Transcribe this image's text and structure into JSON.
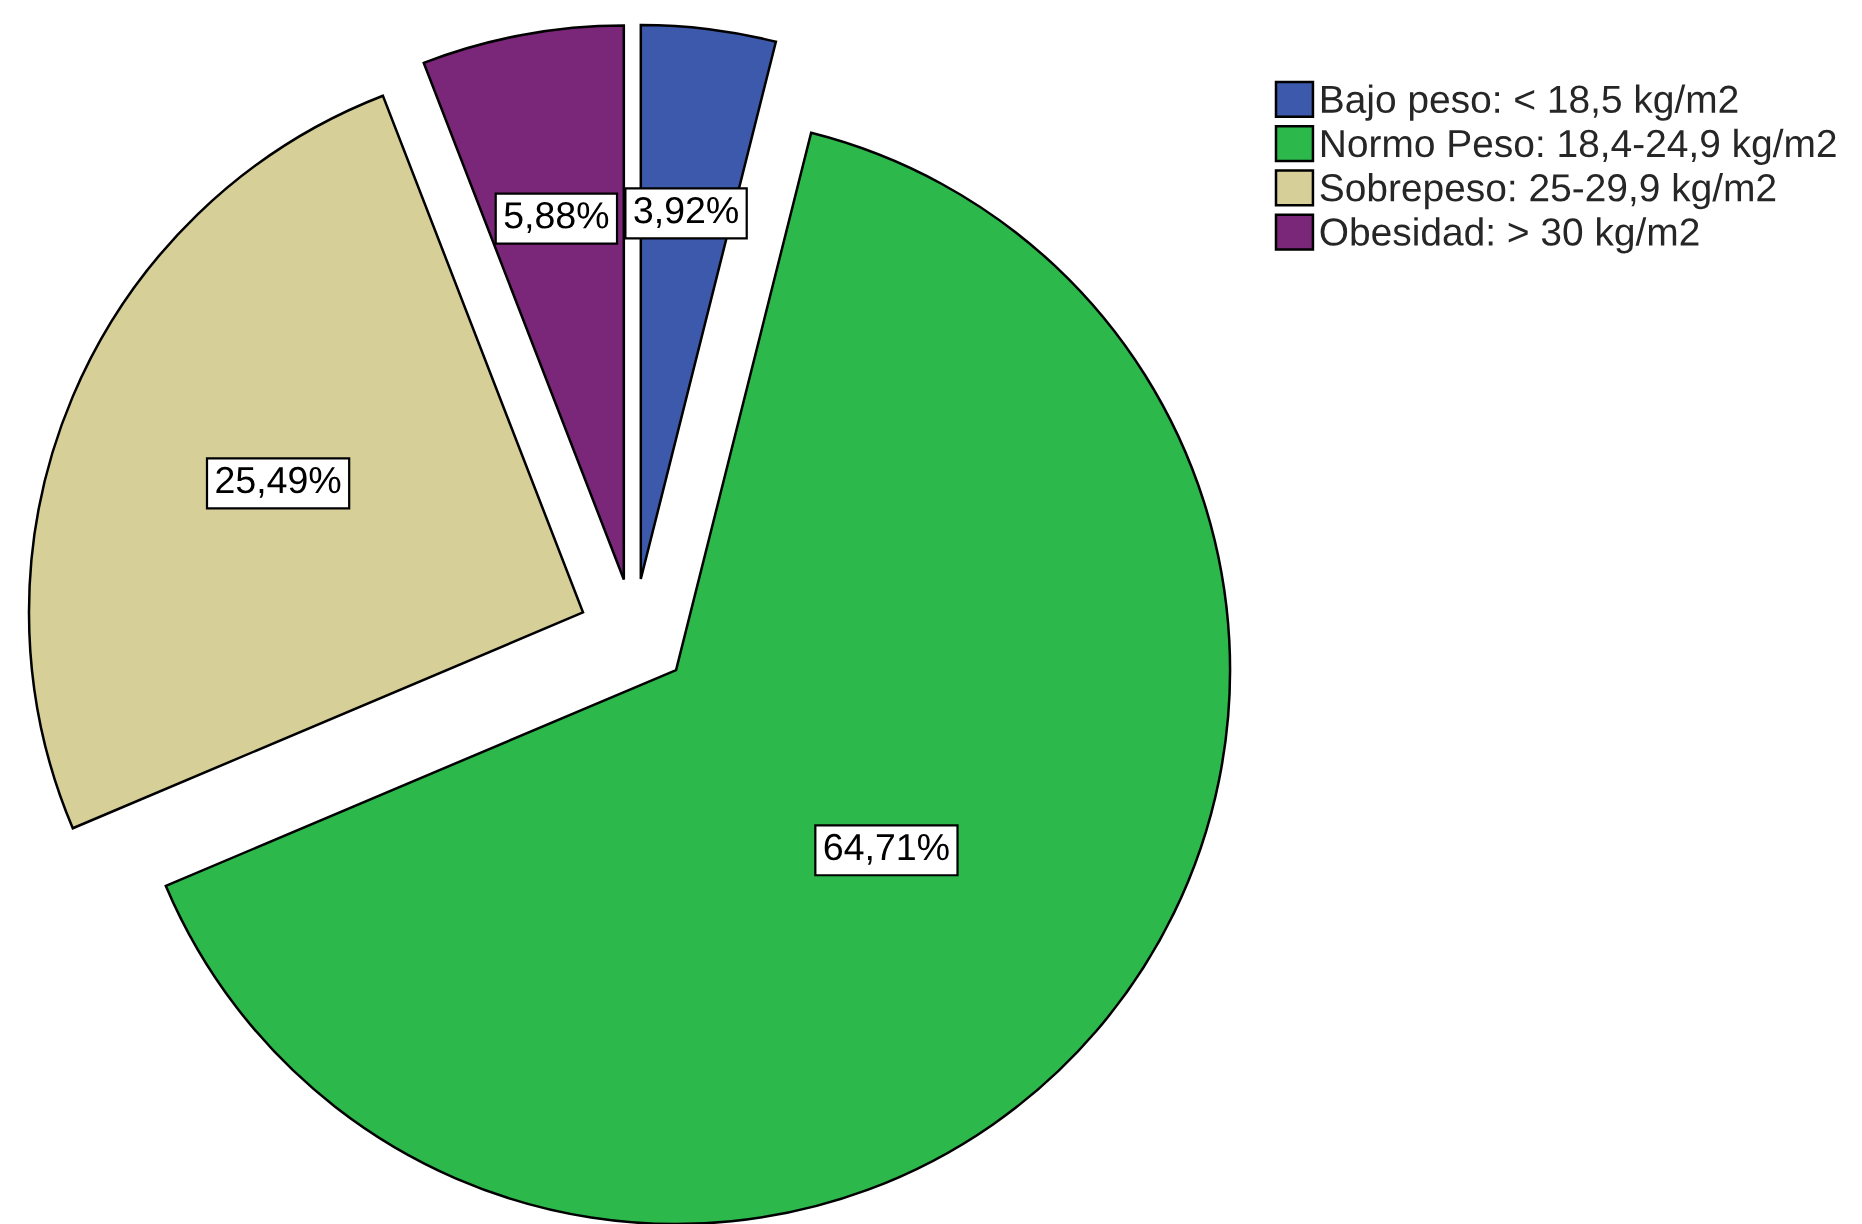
{
  "chart_data": {
    "type": "pie",
    "categories": [
      "Bajo peso: < 18,5 kg/m2",
      "Normo Peso: 18,4-24,9 kg/m2",
      "Sobrepeso: 25-29,9 kg/m2",
      "Obesidad: > 30 kg/m2"
    ],
    "values": [
      3.92,
      64.71,
      25.49,
      5.88
    ],
    "colors": [
      "#3d59ab",
      "#2db84b",
      "#d6cf98",
      "#7a2679"
    ],
    "value_labels": [
      "3,92%",
      "64,71%",
      "25,49%",
      "5,88%"
    ],
    "legend": "top right"
  }
}
